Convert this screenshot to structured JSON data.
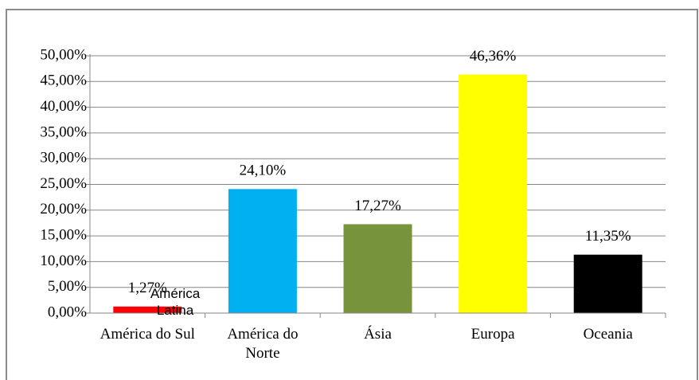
{
  "chart_data": {
    "type": "bar",
    "categories": [
      "América do Sul",
      "América do Norte",
      "Ásia",
      "Europa",
      "Oceania"
    ],
    "values": [
      1.27,
      24.1,
      17.27,
      46.36,
      11.35
    ],
    "value_labels": [
      "1,27%",
      "24,10%",
      "17,27%",
      "46,36%",
      "11,35%"
    ],
    "colors": [
      "#ff0000",
      "#00b0f0",
      "#77933c",
      "#ffff00",
      "#000000"
    ],
    "ylim": [
      0,
      50
    ],
    "yticks": [
      {
        "value": 0,
        "label": "0,00%"
      },
      {
        "value": 5,
        "label": "5,00%"
      },
      {
        "value": 10,
        "label": "10,00%"
      },
      {
        "value": 15,
        "label": "15,00%"
      },
      {
        "value": 20,
        "label": "20,00%"
      },
      {
        "value": 25,
        "label": "25,00%"
      },
      {
        "value": 30,
        "label": "30,00%"
      },
      {
        "value": 35,
        "label": "35,00%"
      },
      {
        "value": 40,
        "label": "40,00%"
      },
      {
        "value": 45,
        "label": "45,00%"
      },
      {
        "value": 50,
        "label": "50,00%"
      }
    ],
    "grid": true,
    "annotation": "América Latina"
  }
}
